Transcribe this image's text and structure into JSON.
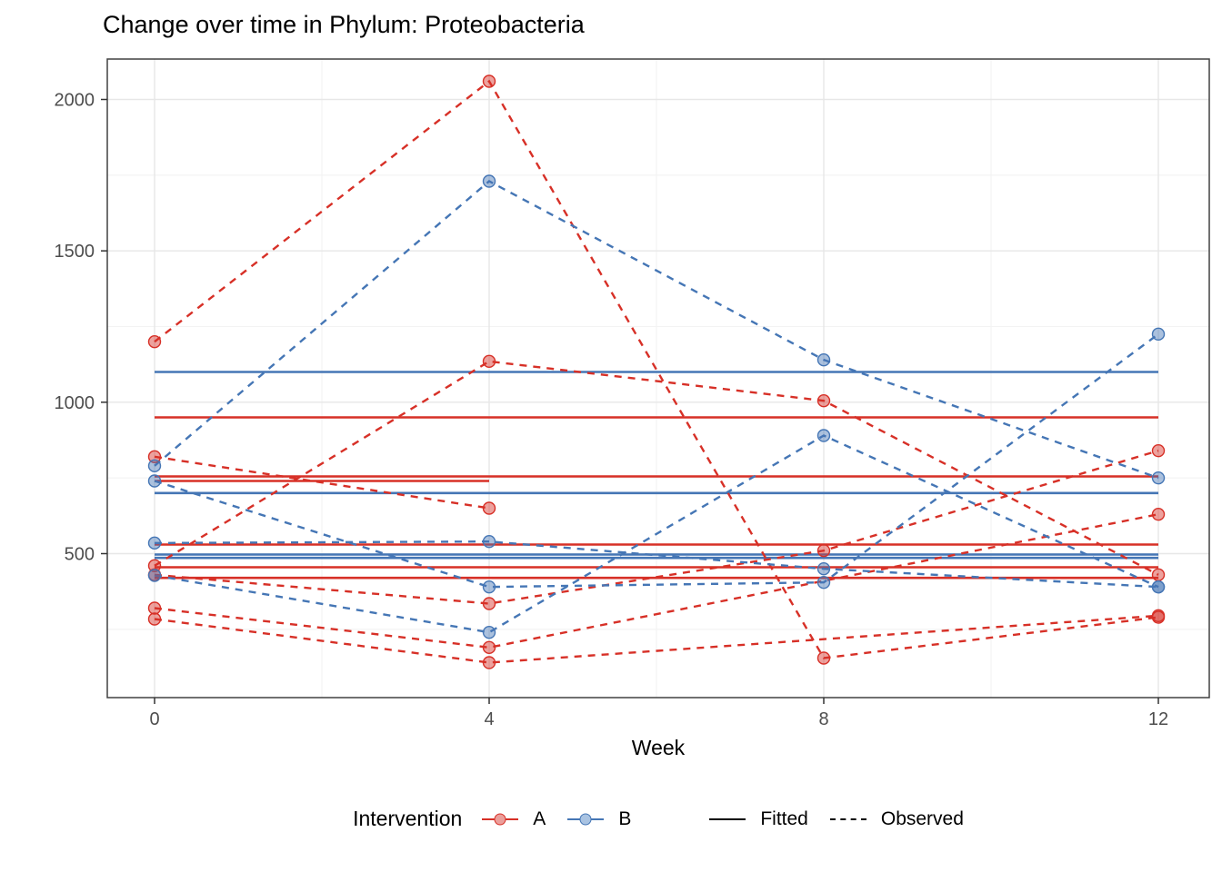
{
  "chart_data": {
    "type": "line",
    "title": "Change over time in Phylum: Proteobacteria",
    "xlabel": "Week",
    "ylabel": "",
    "x_ticks": [
      0,
      4,
      8,
      12
    ],
    "x_minor": [
      2,
      6,
      10
    ],
    "y_ticks": [
      2000,
      1500,
      1000,
      500
    ],
    "y_minor": [
      1750,
      1250,
      750,
      250
    ],
    "xlim": [
      -0.57,
      12.57
    ],
    "ylim": [
      25,
      2135
    ],
    "grid": "on",
    "legend_position": "bottom",
    "legend": {
      "title": "Intervention",
      "groups": [
        {
          "label": "A",
          "color": "#d73027"
        },
        {
          "label": "B",
          "color": "#4576b5"
        }
      ],
      "linetypes": [
        {
          "label": "Fitted",
          "style": "solid"
        },
        {
          "label": "Observed",
          "style": "dashed"
        }
      ]
    },
    "series": [
      {
        "subject": "A1",
        "group": "A",
        "fitted": 950,
        "weeks": [
          0,
          4,
          8,
          12
        ],
        "values": [
          1200,
          2060,
          155,
          290
        ]
      },
      {
        "subject": "A2",
        "group": "A",
        "fitted": 740,
        "weeks": [
          0,
          4
        ],
        "values": [
          820,
          650
        ]
      },
      {
        "subject": "A3",
        "group": "A",
        "fitted": 755,
        "weeks": [
          0,
          4,
          8,
          12
        ],
        "values": [
          460,
          1135,
          1005,
          430
        ]
      },
      {
        "subject": "A4",
        "group": "A",
        "fitted": 530,
        "weeks": [
          0,
          4,
          8,
          12
        ],
        "values": [
          430,
          335,
          510,
          840
        ]
      },
      {
        "subject": "A5",
        "group": "A",
        "fitted": 455,
        "weeks": [
          0,
          4,
          12
        ],
        "values": [
          320,
          190,
          630
        ]
      },
      {
        "subject": "A6",
        "group": "A",
        "fitted": 420,
        "weeks": [
          0,
          4,
          12
        ],
        "values": [
          284,
          140,
          295
        ]
      },
      {
        "subject": "B1",
        "group": "B",
        "fitted": 1100,
        "weeks": [
          0,
          4,
          8,
          12
        ],
        "values": [
          790,
          1730,
          1140,
          750
        ]
      },
      {
        "subject": "B2",
        "group": "B",
        "fitted": 486,
        "weeks": [
          0,
          4,
          8,
          12
        ],
        "values": [
          535,
          540,
          450,
          390
        ]
      },
      {
        "subject": "B3",
        "group": "B",
        "fitted": 700,
        "weeks": [
          0,
          4,
          8,
          12
        ],
        "values": [
          740,
          390,
          405,
          1225
        ]
      },
      {
        "subject": "B4",
        "group": "B",
        "fitted": 497,
        "weeks": [
          0,
          4,
          8,
          12
        ],
        "values": [
          428,
          240,
          890,
          390
        ]
      }
    ],
    "style": {
      "color_A": "#d73027",
      "color_B": "#4576b5",
      "point_fill_opacity": 0.45,
      "panel_border": "#404040",
      "grid_major": "#e7e7e7",
      "grid_minor": "#f3f3f3",
      "tick_label_color": "#4d4d4d"
    }
  }
}
